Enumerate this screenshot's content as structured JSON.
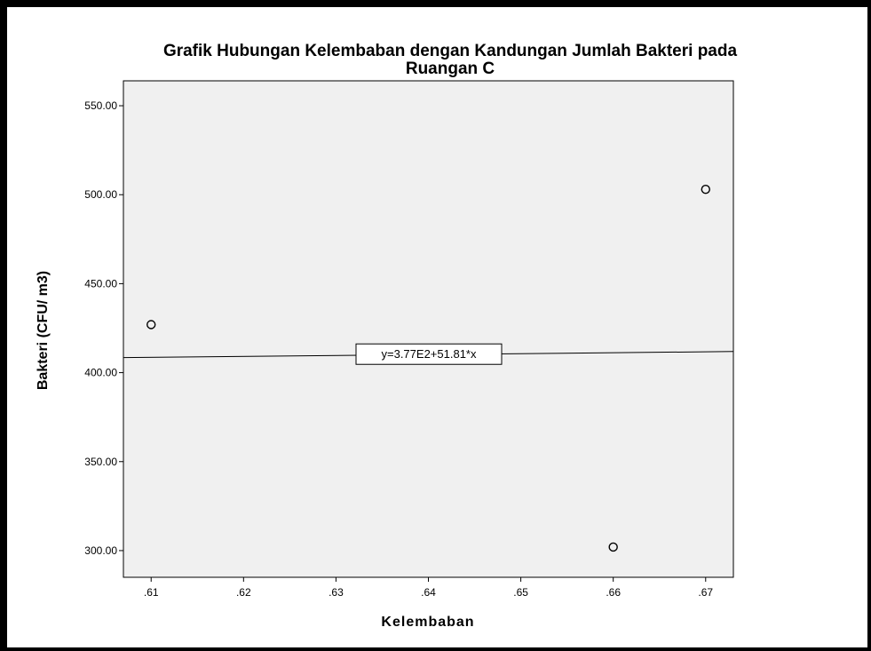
{
  "chart_data": {
    "type": "scatter",
    "title": "Grafik Hubungan Kelembaban dengan Kandungan Jumlah Bakteri pada Ruangan C",
    "title_lines": [
      "Grafik Hubungan Kelembaban dengan Kandungan Jumlah Bakteri pada",
      "Ruangan C"
    ],
    "xlabel": "Kelembaban",
    "ylabel": "Bakteri (CFU/ m3)",
    "xlim": [
      0.607,
      0.673
    ],
    "ylim": [
      285,
      564
    ],
    "x_ticks": [
      0.61,
      0.62,
      0.63,
      0.64,
      0.65,
      0.66,
      0.67
    ],
    "x_tick_labels": [
      ".61",
      ".62",
      ".63",
      ".64",
      ".65",
      ".66",
      ".67"
    ],
    "y_ticks": [
      300,
      350,
      400,
      450,
      500,
      550
    ],
    "y_tick_labels": [
      "300.00",
      "350.00",
      "400.00",
      "450.00",
      "500.00",
      "550.00"
    ],
    "points": [
      {
        "x": 0.61,
        "y": 427
      },
      {
        "x": 0.66,
        "y": 302
      },
      {
        "x": 0.67,
        "y": 503
      }
    ],
    "fit_line": {
      "intercept": 377,
      "slope": 51.81,
      "label": "y=3.77E2+51.81*x"
    },
    "grid": false,
    "legend": "none",
    "colors": {
      "plot_background": "#f0f0f0",
      "page_background": "#ffffff",
      "marker_stroke": "#000000",
      "line": "#000000"
    }
  }
}
